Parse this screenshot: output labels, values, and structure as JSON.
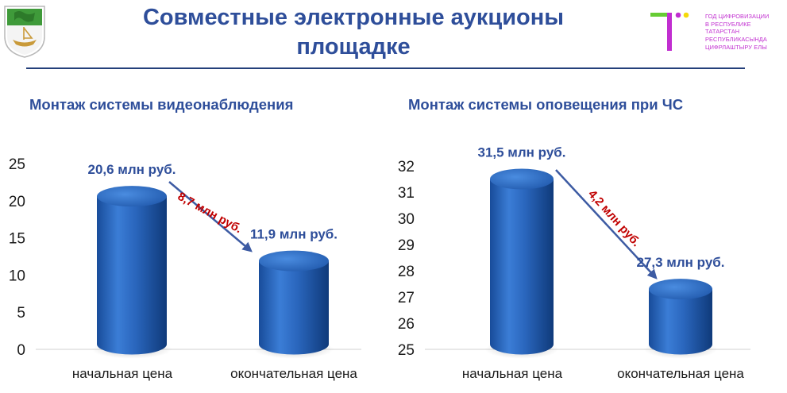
{
  "header": {
    "title_line1": "Совместные электронные аукционы",
    "title_line2": "площадке"
  },
  "logo": {
    "line1": "ГОД ЦИФРОВИЗАЦИИ",
    "line2": "В РЕСПУБЛИКЕ",
    "line3": "ТАТАРСТАН",
    "line4": "РЕСПУБЛИКАСЫНДА",
    "line5": "ЦИФРЛАШТЫРУ ЕЛЫ",
    "accent_green": "#66CC33",
    "accent_magenta": "#C12ED0",
    "accent_yellow": "#F5D90A"
  },
  "colors": {
    "title": "#2E4E9A",
    "bar": "#2E6BC2",
    "arrow": "#3D5BA3",
    "delta": "#C00000"
  },
  "chart_data": [
    {
      "type": "bar",
      "title": "Монтаж системы видеонаблюдения",
      "categories": [
        "начальная цена",
        "окончательная цена"
      ],
      "values": [
        20.6,
        11.9
      ],
      "data_labels": [
        "20,6 млн руб.",
        "11,9 млн руб."
      ],
      "delta_label": "8,7 млн руб.",
      "yticks": [
        "0",
        "5",
        "10",
        "15",
        "20",
        "25"
      ],
      "ylim": [
        0,
        25
      ],
      "grid": false
    },
    {
      "type": "bar",
      "title": "Монтаж системы оповещения при ЧС",
      "categories": [
        "начальная цена",
        "окончательная цена"
      ],
      "values": [
        31.5,
        27.3
      ],
      "data_labels": [
        "31,5 млн руб.",
        "27,3 млн руб."
      ],
      "delta_label": "4,2 млн руб.",
      "yticks": [
        "25",
        "26",
        "27",
        "28",
        "29",
        "30",
        "31",
        "32"
      ],
      "ylim": [
        25,
        32
      ],
      "grid": false
    }
  ]
}
